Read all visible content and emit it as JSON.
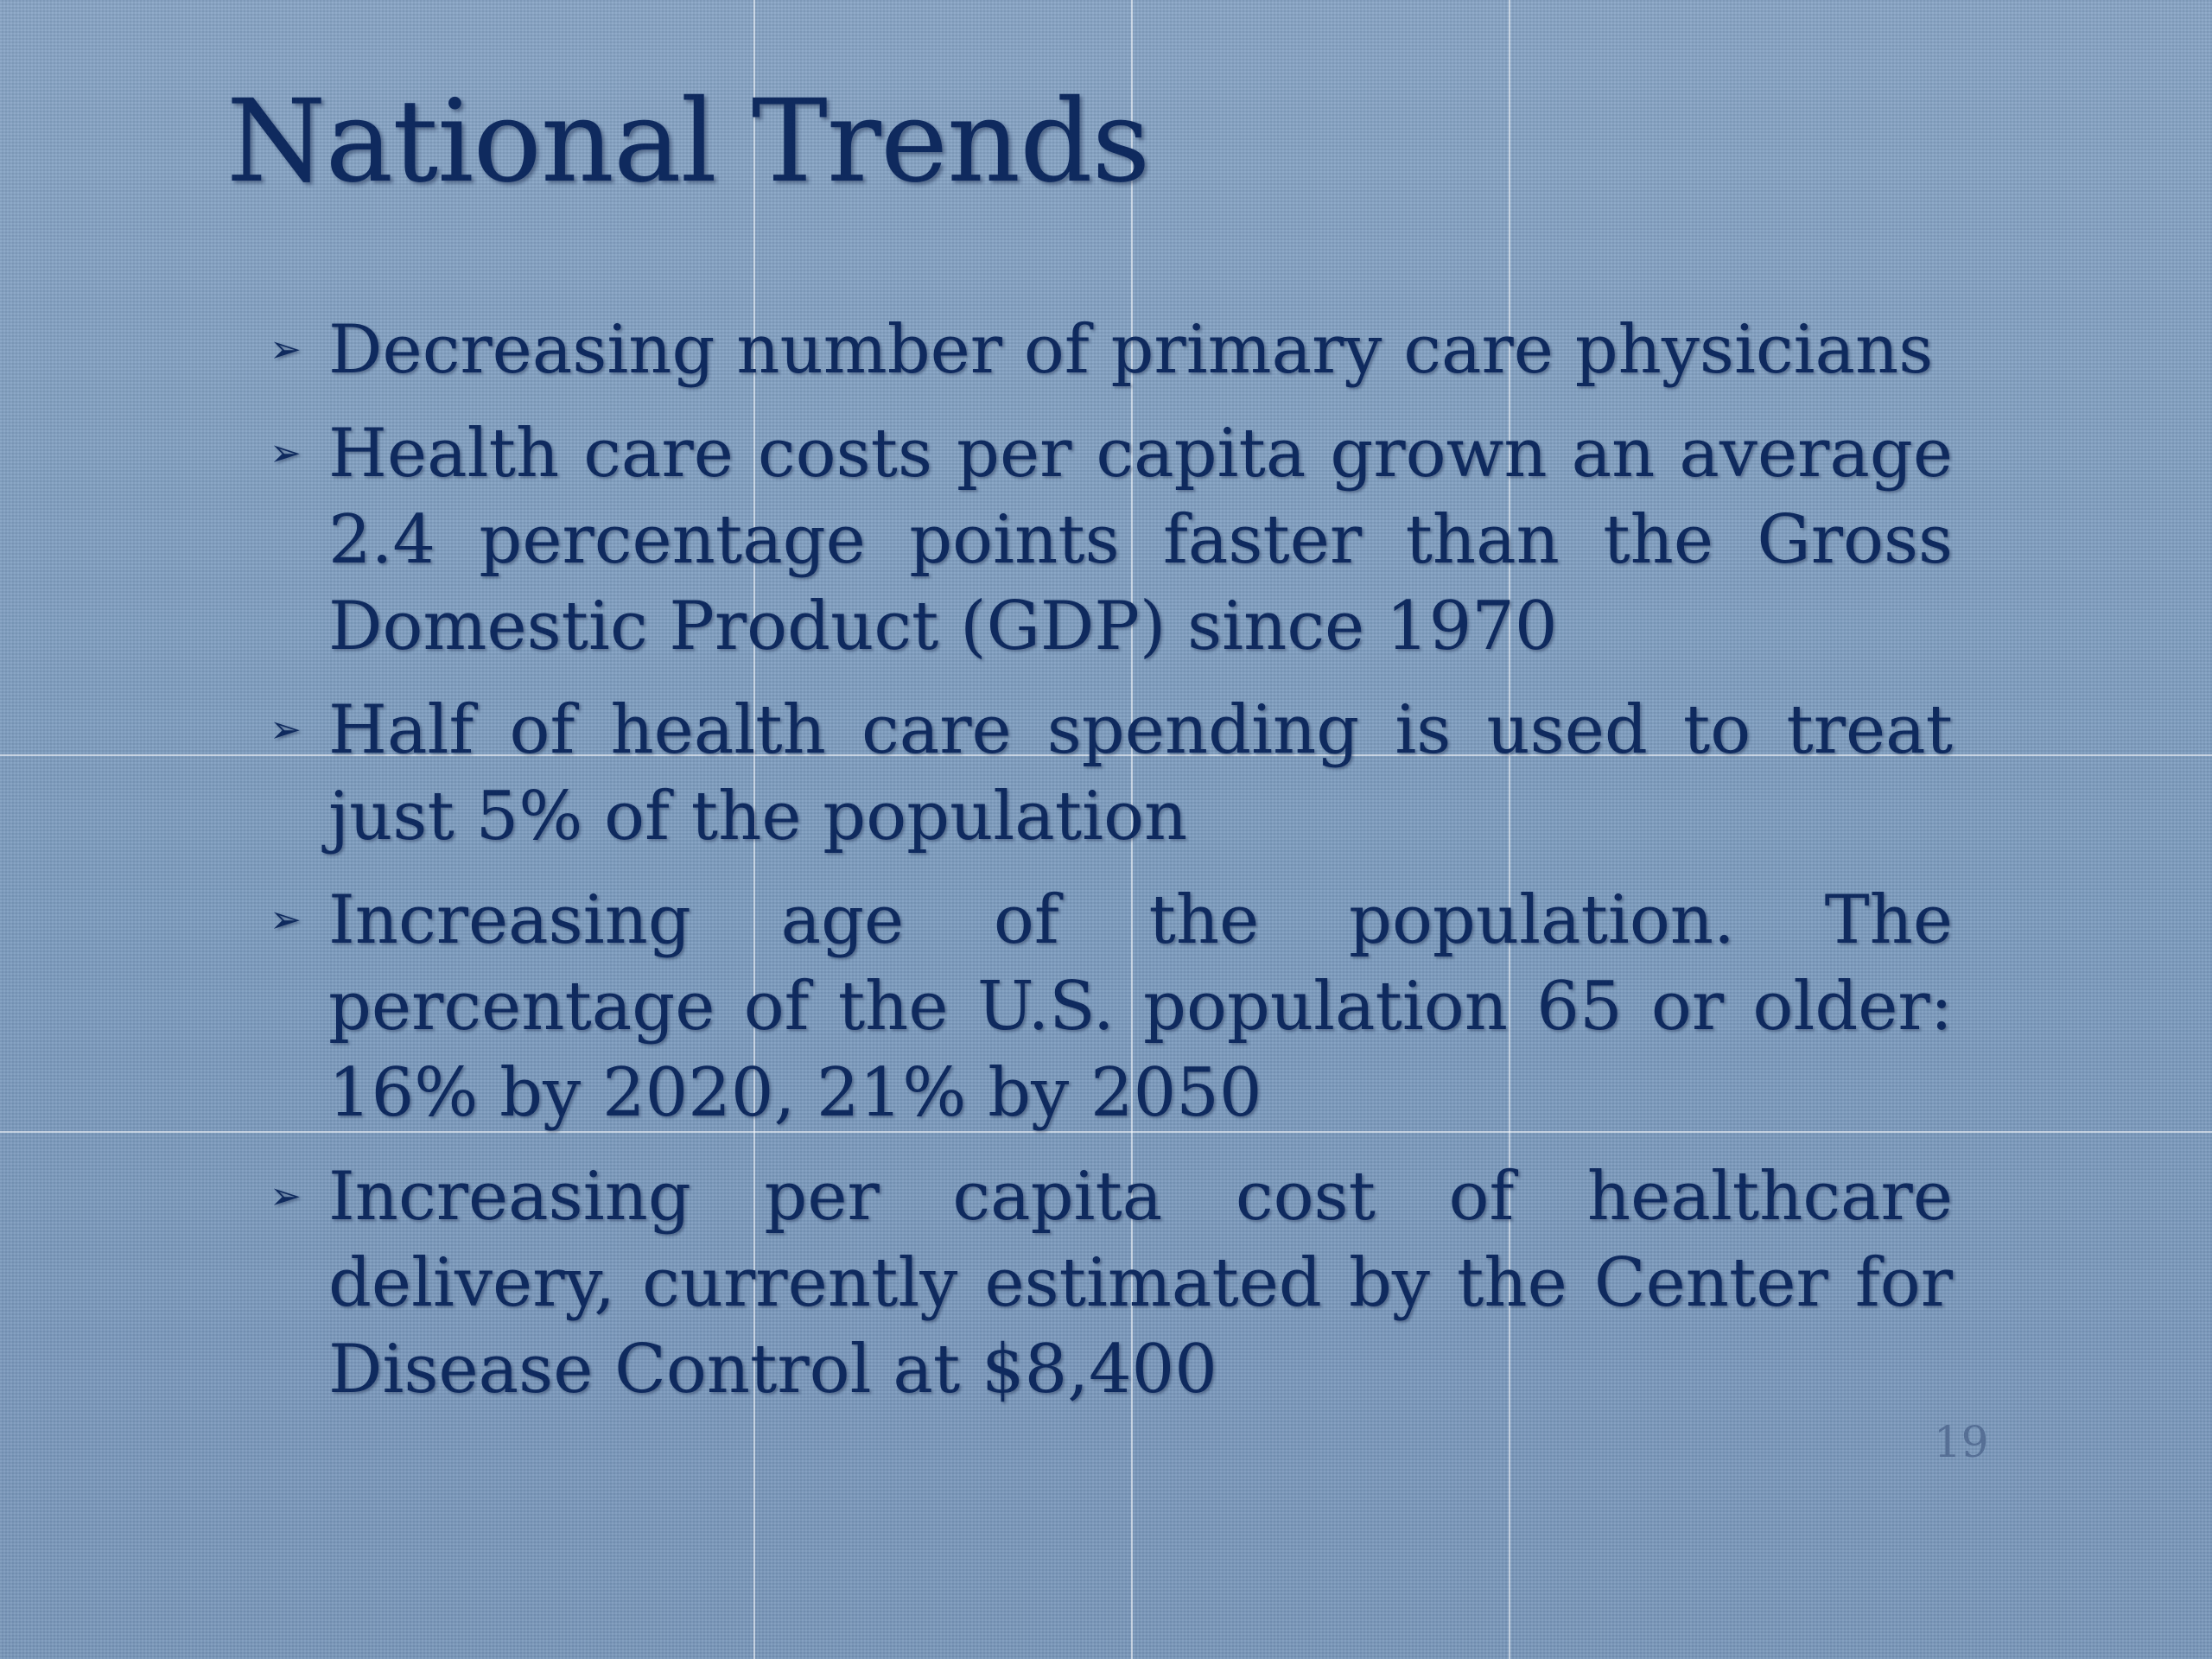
{
  "slide": {
    "title": "National Trends",
    "bullet_marker": "➢",
    "bullets": [
      "Decreasing number of primary care physicians",
      "Health care costs per capita grown an average 2.4 percentage points faster than the Gross Domestic Product (GDP) since 1970",
      "Half of health care spending is used to treat just 5% of the population",
      "Increasing age of the population. The percentage of the U.S. population 65 or older:  16% by 2020, 21% by 2050",
      "Increasing per capita cost of healthcare delivery, currently estimated by the Center for Disease Control at $8,400"
    ],
    "page_number": "19"
  },
  "colors": {
    "background": "#7f9ec0",
    "text": "#0f2a5e",
    "page_number": "#566f95"
  }
}
